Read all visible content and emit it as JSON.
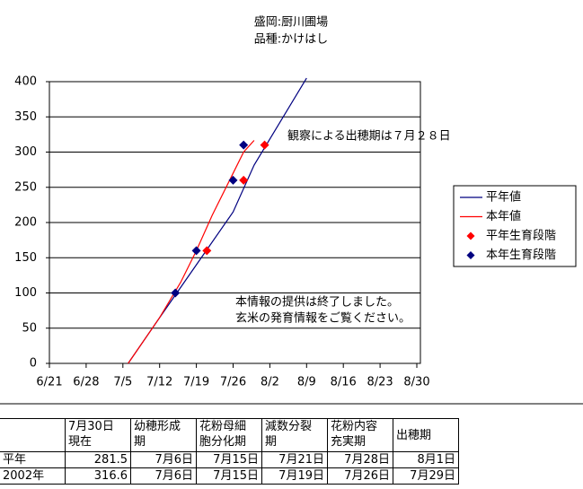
{
  "chart_data": {
    "type": "line",
    "title": "盛岡:厨川圃場",
    "subtitle": "品種:かけはし",
    "xlim": [
      "6/21",
      "8/30"
    ],
    "xticks": [
      "6/21",
      "6/28",
      "7/5",
      "7/12",
      "7/19",
      "7/26",
      "8/2",
      "8/9",
      "8/16",
      "8/23",
      "8/30"
    ],
    "ylim": [
      0,
      400
    ],
    "yticks": [
      0,
      50,
      100,
      150,
      200,
      250,
      300,
      350,
      400
    ],
    "grid": true,
    "series": [
      {
        "name": "平年値",
        "type": "line",
        "color": "#000080",
        "x": [
          "7/6",
          "7/12",
          "7/19",
          "7/26",
          "7/30",
          "8/9"
        ],
        "values": [
          0,
          65,
          140,
          215,
          281.5,
          405
        ]
      },
      {
        "name": "本年値",
        "type": "line",
        "color": "#ff0000",
        "x": [
          "7/6",
          "7/12",
          "7/16",
          "7/19",
          "7/22",
          "7/26",
          "7/28",
          "7/30"
        ],
        "values": [
          0,
          65,
          115,
          160,
          210,
          270,
          300,
          316.6
        ]
      },
      {
        "name": "平年生育段階",
        "type": "scatter",
        "color": "#ff0000",
        "x": [
          "7/21",
          "7/28",
          "8/1"
        ],
        "values": [
          160,
          260,
          310
        ]
      },
      {
        "name": "本年生育段階",
        "type": "scatter",
        "color": "#000080",
        "x": [
          "7/15",
          "7/19",
          "7/26",
          "7/28"
        ],
        "values": [
          100,
          160,
          260,
          310
        ]
      }
    ],
    "annotations": [
      {
        "lines": [
          "観察による出穂期は７月２８日"
        ],
        "color": "#0000cc"
      },
      {
        "lines": [
          "本情報の提供は終了しました。",
          "玄米の発育情報をご覧ください。"
        ],
        "color": "#ff0000"
      }
    ]
  },
  "table": {
    "columns": [
      [
        "7月30日",
        "現在"
      ],
      [
        "幼穂形成",
        "期"
      ],
      [
        "花粉母細",
        "胞分化期"
      ],
      [
        "減数分裂",
        "期"
      ],
      [
        "花粉内容",
        "充実期"
      ],
      [
        "出穂期"
      ]
    ],
    "rows": [
      {
        "label": "平年",
        "cells": [
          281.5,
          "7月6日",
          "7月15日",
          "7月21日",
          "7月28日",
          "8月1日"
        ]
      },
      {
        "label": "2002年",
        "cells": [
          316.6,
          "7月6日",
          "7月15日",
          "7月19日",
          "7月26日",
          "7月29日"
        ]
      }
    ]
  }
}
